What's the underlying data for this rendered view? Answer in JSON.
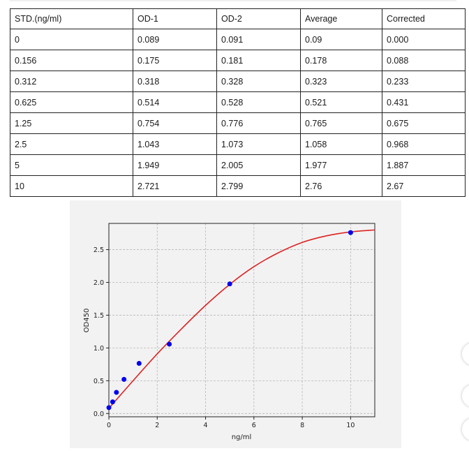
{
  "table": {
    "headers": [
      "STD.(ng/ml)",
      "OD-1",
      "OD-2",
      "Average",
      "Corrected"
    ],
    "rows": [
      [
        "0",
        "0.089",
        "0.091",
        "0.09",
        "0.000"
      ],
      [
        "0.156",
        "0.175",
        "0.181",
        "0.178",
        "0.088"
      ],
      [
        "0.312",
        "0.318",
        "0.328",
        "0.323",
        "0.233"
      ],
      [
        "0.625",
        "0.514",
        "0.528",
        "0.521",
        "0.431"
      ],
      [
        "1.25",
        "0.754",
        "0.776",
        "0.765",
        "0.675"
      ],
      [
        "2.5",
        "1.043",
        "1.073",
        "1.058",
        "0.968"
      ],
      [
        "5",
        "1.949",
        "2.005",
        "1.977",
        "1.887"
      ],
      [
        "10",
        "2.721",
        "2.799",
        "2.76",
        "2.67"
      ]
    ]
  },
  "chart_data": {
    "type": "scatter",
    "xlabel": "ng/ml",
    "ylabel": "OD450",
    "xlim": [
      0,
      11
    ],
    "ylim": [
      -0.05,
      2.9
    ],
    "xticks": [
      "0",
      "2",
      "4",
      "6",
      "8",
      "10"
    ],
    "yticks": [
      "0.0",
      "0.5",
      "1.0",
      "1.5",
      "2.0",
      "2.5"
    ],
    "grid": true,
    "series": [
      {
        "x": [
          0,
          0.156,
          0.312,
          0.625,
          1.25,
          2.5,
          5,
          10
        ],
        "y": [
          0.09,
          0.178,
          0.323,
          0.521,
          0.765,
          1.058,
          1.977,
          2.76
        ],
        "color": "#0000ee"
      }
    ],
    "fit_curve": {
      "x": [
        0,
        1,
        2,
        3,
        4,
        5,
        6,
        7,
        8,
        9,
        10,
        11
      ],
      "y": [
        0.08,
        0.5,
        0.91,
        1.29,
        1.65,
        1.97,
        2.24,
        2.45,
        2.61,
        2.71,
        2.77,
        2.8
      ],
      "color": "#dd2222"
    }
  },
  "colors": {
    "point": "#0000ee",
    "curve": "#dd2222",
    "panel_background": "#f2f2f2"
  }
}
